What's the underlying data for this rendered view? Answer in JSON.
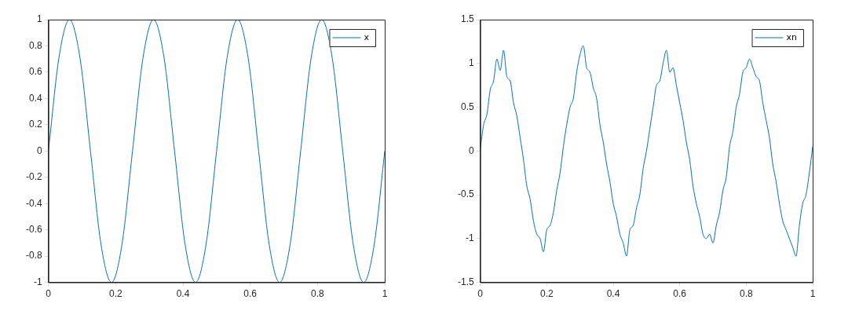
{
  "chart_data": [
    {
      "type": "line",
      "x": [
        0,
        0.03125,
        0.0625,
        0.09375,
        0.125,
        0.15625,
        0.1875,
        0.21875,
        0.25,
        0.28125,
        0.3125,
        0.34375,
        0.375,
        0.40625,
        0.4375,
        0.46875,
        0.5,
        0.53125,
        0.5625,
        0.59375,
        0.625,
        0.65625,
        0.6875,
        0.71875,
        0.75,
        0.78125,
        0.8125,
        0.84375,
        0.875,
        0.90625,
        0.9375,
        0.96875,
        1
      ],
      "series": [
        {
          "name": "x",
          "color": "#0072bd",
          "values": [
            0,
            0.71,
            1,
            0.71,
            0,
            -0.71,
            -1,
            -0.71,
            0,
            0.71,
            1,
            0.71,
            0,
            -0.71,
            -1,
            -0.71,
            0,
            0.71,
            1,
            0.71,
            0,
            -0.71,
            -1,
            -0.71,
            0,
            0.71,
            1,
            0.71,
            0,
            -0.71,
            -1,
            -0.71,
            0
          ]
        }
      ],
      "xlim": [
        0,
        1
      ],
      "xticks": [
        0,
        0.2,
        0.4,
        0.6,
        0.8,
        1
      ],
      "ylim": [
        -1,
        1
      ],
      "yticks": [
        -1,
        -0.8,
        -0.6,
        -0.4,
        -0.2,
        0,
        0.2,
        0.4,
        0.6,
        0.8,
        1
      ],
      "grid": false,
      "legend": "top right",
      "marker": "none",
      "line_style": "solid"
    },
    {
      "type": "line",
      "x": [
        0,
        0.01,
        0.02,
        0.03,
        0.04,
        0.05,
        0.06,
        0.07,
        0.08,
        0.09,
        0.1,
        0.11,
        0.12,
        0.13,
        0.14,
        0.15,
        0.16,
        0.17,
        0.18,
        0.19,
        0.2,
        0.21,
        0.22,
        0.23,
        0.24,
        0.25,
        0.26,
        0.27,
        0.28,
        0.29,
        0.3,
        0.31,
        0.32,
        0.33,
        0.34,
        0.35,
        0.36,
        0.37,
        0.38,
        0.39,
        0.4,
        0.41,
        0.42,
        0.43,
        0.44,
        0.45,
        0.46,
        0.47,
        0.48,
        0.49,
        0.5,
        0.51,
        0.52,
        0.53,
        0.54,
        0.55,
        0.56,
        0.57,
        0.58,
        0.59,
        0.6,
        0.61,
        0.62,
        0.63,
        0.64,
        0.65,
        0.66,
        0.67,
        0.68,
        0.69,
        0.7,
        0.71,
        0.72,
        0.73,
        0.74,
        0.75,
        0.76,
        0.77,
        0.78,
        0.79,
        0.8,
        0.81,
        0.82,
        0.83,
        0.84,
        0.85,
        0.86,
        0.87,
        0.88,
        0.89,
        0.9,
        0.91,
        0.92,
        0.93,
        0.94,
        0.95,
        0.96,
        0.97,
        0.98,
        0.99,
        1
      ],
      "series": [
        {
          "name": "xn",
          "color": "#0072bd",
          "values": [
            0.02,
            0.3,
            0.42,
            0.7,
            0.8,
            1.05,
            0.92,
            1.15,
            0.85,
            0.8,
            0.55,
            0.4,
            0.15,
            -0.1,
            -0.4,
            -0.55,
            -0.8,
            -0.95,
            -1,
            -1.15,
            -0.9,
            -0.85,
            -0.7,
            -0.45,
            -0.25,
            0.05,
            0.3,
            0.5,
            0.6,
            0.9,
            1.1,
            1.2,
            0.95,
            0.9,
            0.72,
            0.6,
            0.3,
            0.1,
            -0.15,
            -0.35,
            -0.6,
            -0.75,
            -0.95,
            -1.05,
            -1.2,
            -0.9,
            -0.85,
            -0.65,
            -0.5,
            -0.2,
            0,
            0.25,
            0.5,
            0.75,
            0.8,
            1,
            1.15,
            0.9,
            0.95,
            0.75,
            0.55,
            0.35,
            0.1,
            -0.1,
            -0.4,
            -0.6,
            -0.75,
            -0.95,
            -1,
            -0.95,
            -1.05,
            -0.85,
            -0.7,
            -0.45,
            -0.3,
            0.05,
            0.22,
            0.5,
            0.65,
            0.9,
            0.95,
            1.05,
            0.95,
            0.85,
            0.8,
            0.55,
            0.35,
            0.15,
            -0.15,
            -0.35,
            -0.6,
            -0.8,
            -0.9,
            -1,
            -1.1,
            -1.2,
            -0.85,
            -0.6,
            -0.5,
            -0.25,
            0.05
          ]
        }
      ],
      "xlim": [
        0,
        1
      ],
      "xticks": [
        0,
        0.2,
        0.4,
        0.6,
        0.8,
        1
      ],
      "ylim": [
        -1.5,
        1.5
      ],
      "yticks": [
        -1.5,
        -1,
        -0.5,
        0,
        0.5,
        1,
        1.5
      ],
      "grid": false,
      "legend": "top right",
      "marker": "none",
      "line_style": "solid"
    }
  ]
}
